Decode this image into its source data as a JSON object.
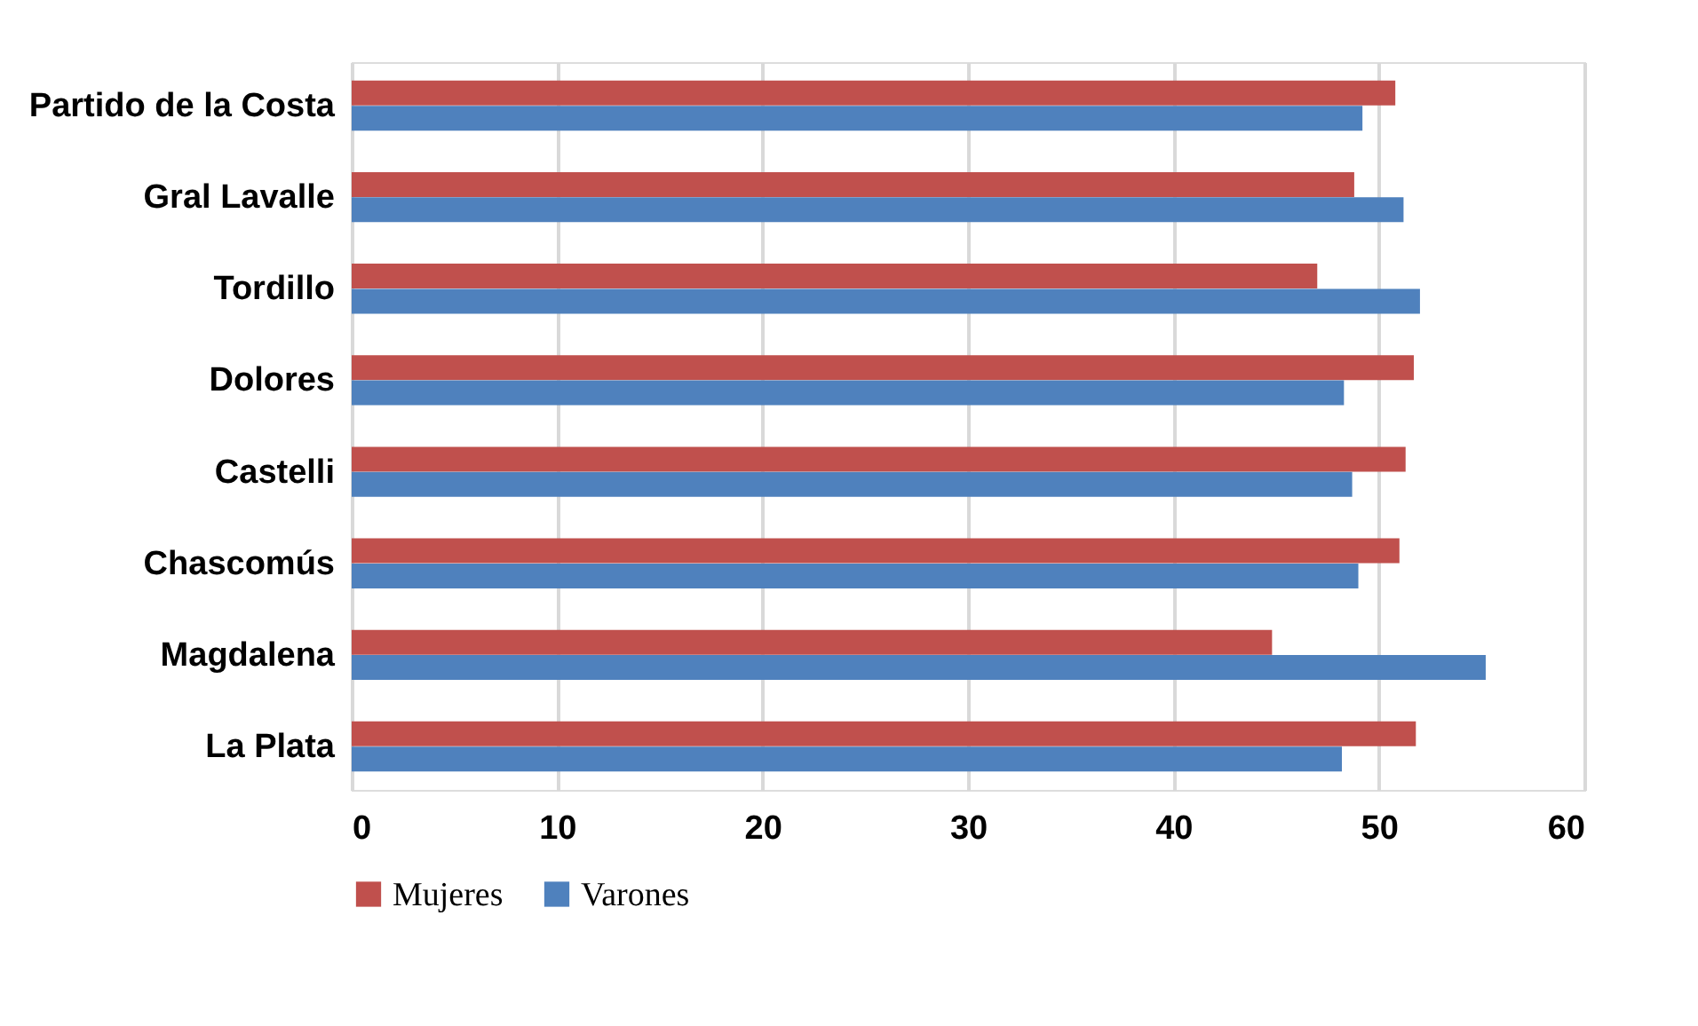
{
  "chart_data": {
    "type": "bar",
    "orientation": "horizontal",
    "categories": [
      "Partido de la Costa",
      "Gral Lavalle",
      "Tordillo",
      "Dolores",
      "Castelli",
      "Chascomús",
      "Magdalena",
      "La Plata"
    ],
    "series": [
      {
        "name": "Mujeres",
        "color": "#c0504d",
        "values": [
          50.8,
          48.8,
          47.0,
          51.7,
          51.3,
          51.0,
          44.8,
          51.8
        ]
      },
      {
        "name": "Varones",
        "color": "#4f81bd",
        "values": [
          49.2,
          51.2,
          52.0,
          48.3,
          48.7,
          49.0,
          55.2,
          48.2
        ]
      }
    ],
    "xlim": [
      0,
      60
    ],
    "xticks": [
      0,
      10,
      20,
      30,
      40,
      50,
      60
    ],
    "grid": "x",
    "legend": "bottom"
  }
}
